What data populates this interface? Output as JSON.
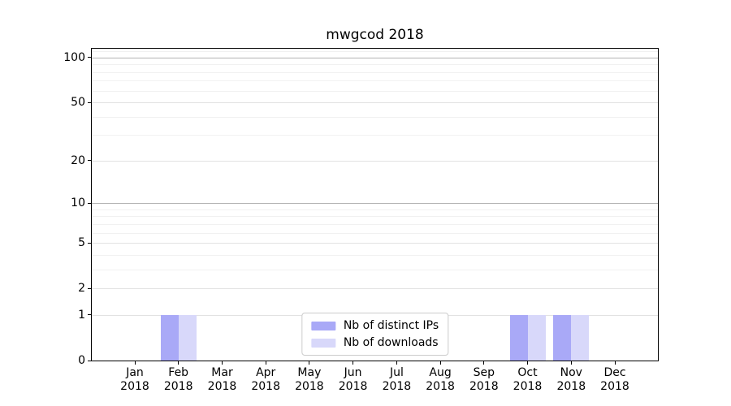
{
  "chart_data": {
    "type": "bar",
    "title": "mwgcod 2018",
    "categories": [
      {
        "month": "Jan",
        "year": "2018"
      },
      {
        "month": "Feb",
        "year": "2018"
      },
      {
        "month": "Mar",
        "year": "2018"
      },
      {
        "month": "Apr",
        "year": "2018"
      },
      {
        "month": "May",
        "year": "2018"
      },
      {
        "month": "Jun",
        "year": "2018"
      },
      {
        "month": "Jul",
        "year": "2018"
      },
      {
        "month": "Aug",
        "year": "2018"
      },
      {
        "month": "Sep",
        "year": "2018"
      },
      {
        "month": "Oct",
        "year": "2018"
      },
      {
        "month": "Nov",
        "year": "2018"
      },
      {
        "month": "Dec",
        "year": "2018"
      }
    ],
    "series": [
      {
        "name": "Nb of distinct IPs",
        "color": "#a9a9f7",
        "values": [
          0,
          1,
          0,
          0,
          0,
          0,
          0,
          0,
          0,
          1,
          1,
          0
        ]
      },
      {
        "name": "Nb of downloads",
        "color": "#d8d8fa",
        "values": [
          0,
          1,
          0,
          0,
          0,
          0,
          0,
          0,
          0,
          1,
          1,
          0
        ]
      }
    ],
    "xlabel": "",
    "ylabel": "",
    "y_axis": {
      "scale": "log1p",
      "major_ticks": [
        0,
        1,
        2,
        5,
        10,
        20,
        50,
        100
      ],
      "minor_gridlines": [
        3,
        4,
        6,
        7,
        8,
        9,
        30,
        40,
        60,
        70,
        80,
        90,
        110
      ],
      "emphasized_gridlines": [
        10,
        100
      ],
      "ylim": [
        0,
        114
      ]
    },
    "grid": {
      "orientation": "horizontal",
      "major_color": "#e2e2e2",
      "minor_color": "#f1f1f1",
      "emphasis_color": "#b4b4b4"
    },
    "legend": {
      "position": "lower center",
      "border_color": "#cccccc"
    }
  }
}
